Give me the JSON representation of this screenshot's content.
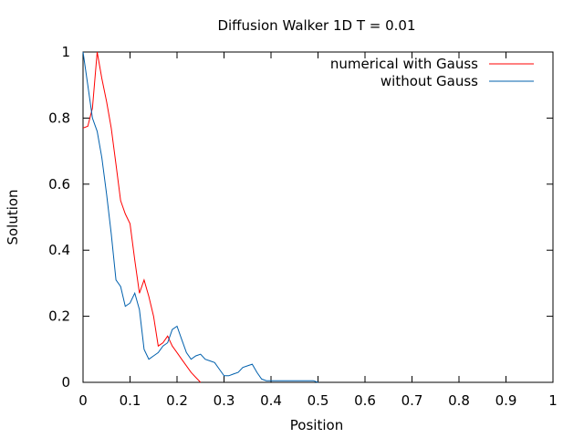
{
  "chart_data": {
    "type": "line",
    "title": "Diffusion Walker 1D T = 0.01",
    "xlabel": "Position",
    "ylabel": "Solution",
    "xlim": [
      0,
      1
    ],
    "ylim": [
      0,
      1
    ],
    "x_ticks": [
      "0",
      "0.1",
      "0.2",
      "0.3",
      "0.4",
      "0.5",
      "0.6",
      "0.7",
      "0.8",
      "0.9",
      "1"
    ],
    "y_ticks": [
      "0",
      "0.2",
      "0.4",
      "0.6",
      "0.8",
      "1"
    ],
    "grid": false,
    "legend_position": "top-right",
    "series": [
      {
        "name": "numerical with Gauss",
        "color": "#ff0000",
        "x": [
          0,
          0.01,
          0.02,
          0.03,
          0.04,
          0.05,
          0.06,
          0.07,
          0.08,
          0.09,
          0.1,
          0.11,
          0.12,
          0.13,
          0.14,
          0.15,
          0.16,
          0.17,
          0.18,
          0.19,
          0.2,
          0.21,
          0.22,
          0.23,
          0.24,
          0.25
        ],
        "y": [
          0.77,
          0.775,
          0.83,
          1.0,
          0.92,
          0.85,
          0.77,
          0.66,
          0.55,
          0.51,
          0.48,
          0.37,
          0.27,
          0.31,
          0.26,
          0.2,
          0.11,
          0.12,
          0.14,
          0.11,
          0.09,
          0.07,
          0.05,
          0.03,
          0.015,
          0.0
        ]
      },
      {
        "name": "without Gauss",
        "color": "#0060ad",
        "x": [
          0,
          0.01,
          0.02,
          0.03,
          0.04,
          0.05,
          0.06,
          0.07,
          0.08,
          0.09,
          0.1,
          0.11,
          0.12,
          0.13,
          0.14,
          0.15,
          0.16,
          0.17,
          0.18,
          0.19,
          0.2,
          0.21,
          0.22,
          0.23,
          0.24,
          0.25,
          0.26,
          0.27,
          0.28,
          0.29,
          0.3,
          0.31,
          0.32,
          0.33,
          0.34,
          0.35,
          0.36,
          0.37,
          0.38,
          0.39,
          0.4,
          0.41,
          0.42,
          0.43,
          0.44,
          0.45,
          0.46,
          0.47,
          0.48,
          0.49,
          0.5
        ],
        "y": [
          1.0,
          0.9,
          0.8,
          0.76,
          0.68,
          0.57,
          0.45,
          0.31,
          0.29,
          0.23,
          0.24,
          0.27,
          0.22,
          0.1,
          0.07,
          0.08,
          0.09,
          0.11,
          0.12,
          0.16,
          0.17,
          0.13,
          0.09,
          0.07,
          0.08,
          0.085,
          0.07,
          0.065,
          0.06,
          0.04,
          0.02,
          0.02,
          0.025,
          0.03,
          0.045,
          0.05,
          0.055,
          0.03,
          0.01,
          0.005,
          0.005,
          0.005,
          0.005,
          0.005,
          0.005,
          0.005,
          0.005,
          0.005,
          0.005,
          0.005,
          0.0
        ]
      }
    ]
  }
}
